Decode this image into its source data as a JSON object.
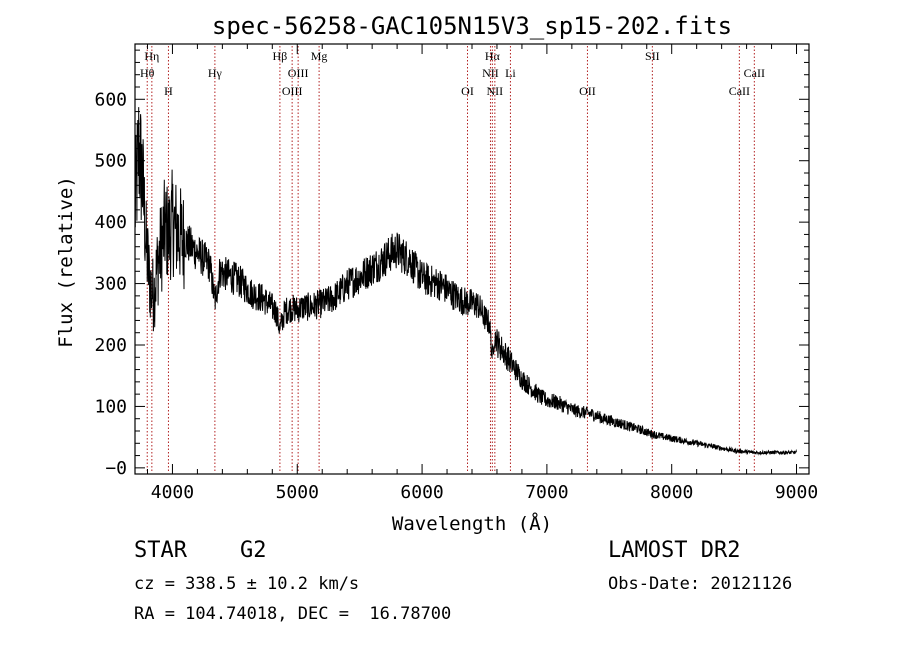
{
  "chart_data": {
    "type": "line",
    "title": "spec-56258-GAC105N15V3_sp15-202.fits",
    "xlabel": "Wavelength (Å)",
    "ylabel": "Flux (relative)",
    "xlim": [
      3700,
      9100
    ],
    "ylim": [
      -10,
      690
    ],
    "xticks": [
      4000,
      5000,
      6000,
      7000,
      8000,
      9000
    ],
    "yticks": [
      0,
      100,
      200,
      300,
      400,
      500,
      600
    ],
    "ytick_labels": [
      "−0",
      "100",
      "200",
      "300",
      "400",
      "500",
      "600"
    ],
    "grid": false,
    "series": [
      {
        "x": [
          3700,
          3730,
          3760,
          3790,
          3820,
          3850,
          3880,
          3910,
          3940,
          3970,
          4000,
          4050,
          4100,
          4150,
          4200,
          4250,
          4300,
          4340,
          4380,
          4430,
          4480,
          4530,
          4580,
          4630,
          4680,
          4730,
          4780,
          4830,
          4861,
          4900,
          4950,
          5000,
          5050,
          5100,
          5150,
          5200,
          5250,
          5300,
          5350,
          5400,
          5450,
          5500,
          5550,
          5600,
          5650,
          5700,
          5750,
          5800,
          5850,
          5900,
          5950,
          6000,
          6050,
          6100,
          6150,
          6200,
          6250,
          6300,
          6350,
          6400,
          6450,
          6500,
          6540,
          6563,
          6580,
          6600,
          6650,
          6700,
          6750,
          6800,
          6850,
          6900,
          6950,
          7000,
          7050,
          7100,
          7150,
          7200,
          7250,
          7300,
          7350,
          7400,
          7450,
          7500,
          7550,
          7600,
          7650,
          7700,
          7750,
          7800,
          7850,
          7900,
          7950,
          8000,
          8050,
          8100,
          8150,
          8200,
          8250,
          8300,
          8350,
          8400,
          8450,
          8500,
          8550,
          8600,
          8650,
          8700,
          8750,
          8800,
          8850,
          8900,
          8950,
          9000
        ],
        "y": [
          420,
          520,
          470,
          360,
          300,
          280,
          330,
          360,
          390,
          380,
          400,
          380,
          370,
          360,
          350,
          340,
          330,
          270,
          320,
          315,
          310,
          305,
          295,
          285,
          280,
          275,
          265,
          255,
          225,
          255,
          260,
          258,
          262,
          262,
          265,
          268,
          272,
          278,
          288,
          298,
          305,
          310,
          318,
          325,
          332,
          340,
          350,
          355,
          345,
          340,
          322,
          310,
          305,
          302,
          298,
          290,
          282,
          275,
          270,
          268,
          265,
          245,
          235,
          180,
          215,
          205,
          190,
          175,
          160,
          145,
          135,
          125,
          115,
          110,
          108,
          105,
          100,
          95,
          92,
          90,
          88,
          85,
          80,
          78,
          74,
          72,
          68,
          65,
          62,
          58,
          55,
          52,
          50,
          48,
          46,
          44,
          42,
          40,
          38,
          36,
          34,
          32,
          30,
          28,
          27,
          26,
          25,
          25,
          25,
          25,
          25,
          25,
          25,
          25
        ]
      }
    ],
    "lines": [
      {
        "label": "Hη",
        "wavelength": 3835,
        "row": 0
      },
      {
        "label": "Hθ",
        "wavelength": 3798,
        "row": 1
      },
      {
        "label": "H",
        "wavelength": 3968,
        "row": 2
      },
      {
        "label": "Hγ",
        "wavelength": 4340,
        "row": 1
      },
      {
        "label": "Hβ",
        "wavelength": 4861,
        "row": 0
      },
      {
        "label": "OIII",
        "wavelength": 5007,
        "row": 1
      },
      {
        "label": "OIII",
        "wavelength": 4959,
        "row": 2
      },
      {
        "label": "Mg",
        "wavelength": 5175,
        "row": 0
      },
      {
        "label": "OI",
        "wavelength": 6364,
        "row": 2
      },
      {
        "label": "Hα",
        "wavelength": 6563,
        "row": 0
      },
      {
        "label": "NII",
        "wavelength": 6548,
        "row": 1
      },
      {
        "label": "NII",
        "wavelength": 6583,
        "row": 2
      },
      {
        "label": "Li",
        "wavelength": 6708,
        "row": 1
      },
      {
        "label": "OII",
        "wavelength": 7325,
        "row": 2
      },
      {
        "label": "SII",
        "wavelength": 7845,
        "row": 0
      },
      {
        "label": "CaII",
        "wavelength": 8662,
        "row": 1
      },
      {
        "label": "CaII",
        "wavelength": 8542,
        "row": 2
      }
    ]
  },
  "info": {
    "class_text": "STAR    G2",
    "survey_text": "LAMOST DR2",
    "cz_text": "cz = 338.5 ± 10.2 km/s",
    "obs_date_text": "Obs-Date: 20121126",
    "radec_text": "RA = 104.74018, DEC =  16.78700"
  }
}
